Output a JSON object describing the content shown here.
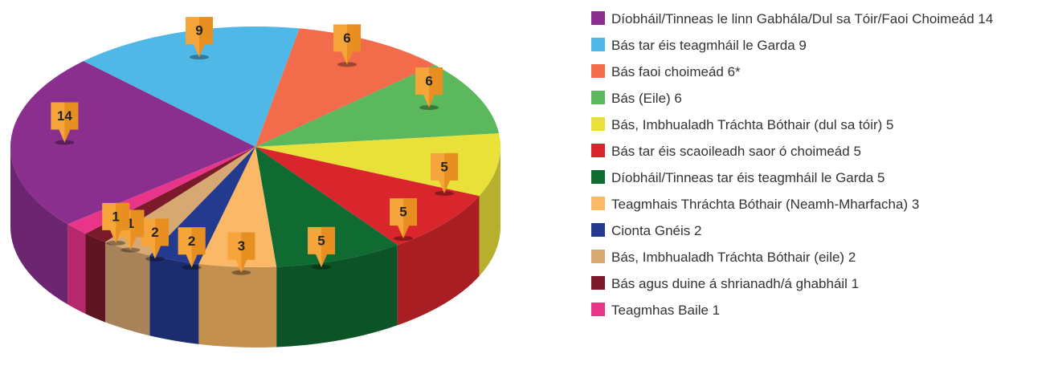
{
  "chart_data": {
    "type": "pie",
    "categories": [
      "Díobháil/Tinneas le linn Gabhála/Dul sa Tóir/Faoi Choimeád 14",
      "Bás tar éis teagmháil le Garda 9",
      "Bás faoi choimeád 6*",
      "Bás (Eile) 6",
      "Bás, Imbhualadh Tráchta Bóthair (dul sa tóir) 5",
      "Bás tar éis scaoileadh saor ó choimeád 5",
      "Díobháil/Tinneas tar éis teagmháil le Garda 5",
      "Teagmhais Thráchta Bóthair (Neamh-Mharfacha) 3",
      "Cionta Gnéis 2",
      "Bás, Imbhualadh Tráchta Bóthair (eile) 2",
      "Bás agus duine á shrianadh/á ghabháil 1",
      "Teagmhas Baile 1"
    ],
    "values": [
      14,
      9,
      6,
      6,
      5,
      5,
      5,
      3,
      2,
      2,
      1,
      1
    ],
    "colors": [
      "#8b2f8f",
      "#4fb8e6",
      "#f26b4a",
      "#5cb85c",
      "#e9e13a",
      "#d9262c",
      "#0f6b32",
      "#fbb867",
      "#233a8e",
      "#d8a873",
      "#7a1a2a",
      "#e8358a"
    ],
    "legend": "right"
  }
}
